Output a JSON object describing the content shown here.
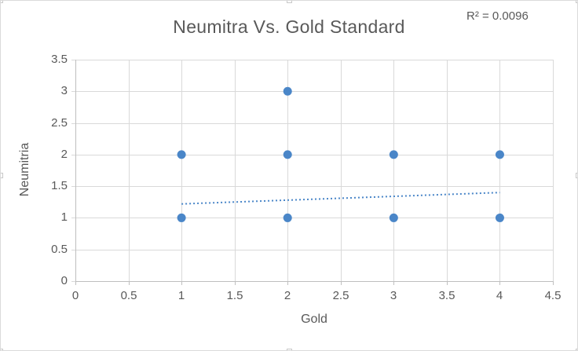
{
  "window": {
    "background": "#ffffff",
    "border_color": "#dadada"
  },
  "chart_data": {
    "type": "scatter",
    "title": "Neumitra Vs. Gold Standard",
    "annotation": "R² = 0.0096",
    "xlabel": "Gold",
    "ylabel": "Neumitria",
    "xlim": [
      0,
      4.5
    ],
    "ylim": [
      0,
      3.5
    ],
    "x_ticks": [
      "0",
      "0.5",
      "1",
      "1.5",
      "2",
      "2.5",
      "3",
      "3.5",
      "4",
      "4.5"
    ],
    "y_ticks": [
      "0",
      "0.5",
      "1",
      "1.5",
      "2",
      "2.5",
      "3",
      "3.5"
    ],
    "grid": true,
    "legend": "none",
    "points": [
      {
        "x": 1,
        "y": 1
      },
      {
        "x": 1,
        "y": 2
      },
      {
        "x": 2,
        "y": 1
      },
      {
        "x": 2,
        "y": 2
      },
      {
        "x": 2,
        "y": 3
      },
      {
        "x": 3,
        "y": 1
      },
      {
        "x": 3,
        "y": 2
      },
      {
        "x": 4,
        "y": 1
      },
      {
        "x": 4,
        "y": 2
      }
    ],
    "trendline": {
      "x1": 1,
      "y1": 1.22,
      "x2": 4,
      "y2": 1.4,
      "style": "dotted"
    },
    "colors": {
      "marker": "#4a86c8",
      "trendline": "#4a86c8",
      "gridline": "#d9d9d9",
      "axis_line": "#bfbfbf",
      "y_tick_mark": "#d9d9d9",
      "text": "#595959"
    }
  }
}
